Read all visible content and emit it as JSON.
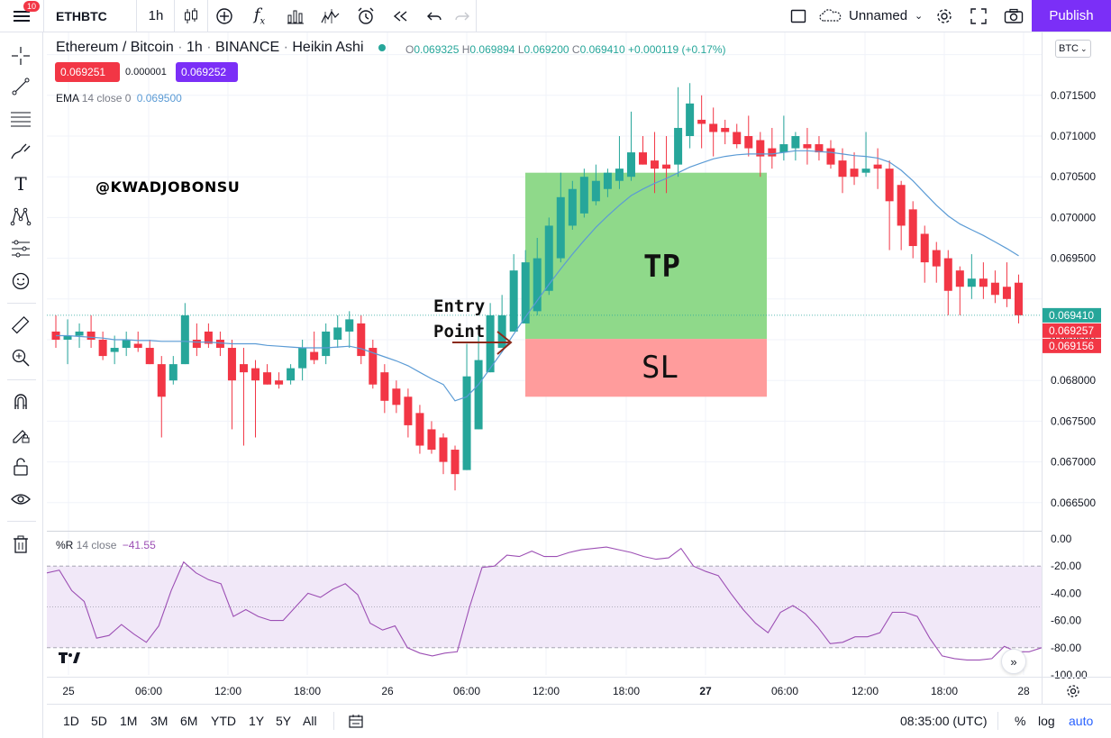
{
  "toolbar": {
    "notif_count": "10",
    "symbol": "ETHBTC",
    "interval": "1h",
    "layout_name": "Unnamed",
    "publish_label": "Publish"
  },
  "legend": {
    "title_pair": "Ethereum / Bitcoin",
    "title_interval": "1h",
    "title_exchange": "BINANCE",
    "title_style": "Heikin Ashi",
    "ohlc": {
      "o_label": "O",
      "o_value": "0.069325",
      "h_label": "H",
      "h_value": "0.069894",
      "l_label": "L",
      "l_value": "0.069200",
      "c_label": "C",
      "c_value": "0.069410",
      "change": "+0.000119 (+0.17%)"
    },
    "bid": "0.069251",
    "spread": "0.000001",
    "ask": "0.069252",
    "ema_label": "EMA",
    "ema_params": "14 close 0",
    "ema_value": "0.069500",
    "wr_label": "%R",
    "wr_params": "14 close",
    "wr_value": "−41.55"
  },
  "watermark": "@KWADJOBONSU",
  "annotations": {
    "entry_line1": "Entry",
    "entry_line2": "Point",
    "tp": "TP",
    "sl": "SL"
  },
  "price_scale": {
    "currency": "BTC",
    "labels": [
      "0.071500",
      "0.071000",
      "0.070500",
      "0.070000",
      "0.069500",
      "0.068500",
      "0.068000",
      "0.067500",
      "0.067000",
      "0.066500"
    ],
    "tags": [
      {
        "value": 0.06941,
        "text": "0.069410",
        "color": "#26a69a"
      },
      {
        "value": 0.069257,
        "text": "0.069257",
        "color": "#f23645"
      },
      {
        "value": 0.069156,
        "text": "0.069156",
        "color": "#f23645"
      }
    ]
  },
  "wr_scale": {
    "labels": [
      "0.00",
      "-20.00",
      "-40.00",
      "-60.00",
      "-80.00",
      "-100.00"
    ]
  },
  "time_axis": {
    "labels": [
      "25",
      "06:00",
      "12:00",
      "18:00",
      "26",
      "06:00",
      "12:00",
      "18:00",
      "27",
      "06:00",
      "12:00",
      "18:00",
      "28"
    ]
  },
  "bottom": {
    "ranges": [
      "1D",
      "5D",
      "1M",
      "3M",
      "6M",
      "YTD",
      "1Y",
      "5Y",
      "All"
    ],
    "clock": "08:35:00 (UTC)",
    "pct": "%",
    "log": "log",
    "auto": "auto"
  },
  "colors": {
    "up": "#26a69a",
    "down": "#f23645",
    "tp_zone": "#8fd98a",
    "sl_zone": "#ff9c9c",
    "ema": "#5b9bd5",
    "wr": "#9c4fb4",
    "wr_band": "#f1e8f8",
    "publish": "#7b2ff7"
  },
  "chart_data": [
    {
      "type": "candlestick",
      "style": "Heikin Ashi",
      "symbol": "ETHBTC",
      "interval": "1h",
      "xlabel": "",
      "ylabel": "",
      "ylim": [
        0.0663,
        0.0721
      ],
      "candles": [
        {
          "o": 0.0686,
          "h": 0.0688,
          "l": 0.0684,
          "c": 0.0685
        },
        {
          "o": 0.0685,
          "h": 0.06875,
          "l": 0.0682,
          "c": 0.06855
        },
        {
          "o": 0.06855,
          "h": 0.0687,
          "l": 0.0684,
          "c": 0.0686
        },
        {
          "o": 0.0686,
          "h": 0.0688,
          "l": 0.0684,
          "c": 0.0685
        },
        {
          "o": 0.0685,
          "h": 0.0686,
          "l": 0.06825,
          "c": 0.0683
        },
        {
          "o": 0.06835,
          "h": 0.06855,
          "l": 0.0682,
          "c": 0.0684
        },
        {
          "o": 0.0684,
          "h": 0.0686,
          "l": 0.0683,
          "c": 0.0685
        },
        {
          "o": 0.06845,
          "h": 0.0686,
          "l": 0.06835,
          "c": 0.0684
        },
        {
          "o": 0.0684,
          "h": 0.0685,
          "l": 0.0682,
          "c": 0.0682
        },
        {
          "o": 0.0682,
          "h": 0.0683,
          "l": 0.0673,
          "c": 0.0678
        },
        {
          "o": 0.068,
          "h": 0.0683,
          "l": 0.06795,
          "c": 0.0682
        },
        {
          "o": 0.0682,
          "h": 0.06895,
          "l": 0.0682,
          "c": 0.0688
        },
        {
          "o": 0.0685,
          "h": 0.0687,
          "l": 0.0683,
          "c": 0.0684
        },
        {
          "o": 0.0686,
          "h": 0.0687,
          "l": 0.0684,
          "c": 0.06845
        },
        {
          "o": 0.0685,
          "h": 0.0686,
          "l": 0.0683,
          "c": 0.0684
        },
        {
          "o": 0.0684,
          "h": 0.0685,
          "l": 0.0674,
          "c": 0.068
        },
        {
          "o": 0.0682,
          "h": 0.0684,
          "l": 0.0672,
          "c": 0.0681
        },
        {
          "o": 0.06815,
          "h": 0.06825,
          "l": 0.0673,
          "c": 0.068
        },
        {
          "o": 0.0681,
          "h": 0.0682,
          "l": 0.06795,
          "c": 0.06795
        },
        {
          "o": 0.068,
          "h": 0.0681,
          "l": 0.0679,
          "c": 0.06795
        },
        {
          "o": 0.068,
          "h": 0.0682,
          "l": 0.06795,
          "c": 0.06815
        },
        {
          "o": 0.06815,
          "h": 0.0685,
          "l": 0.068,
          "c": 0.0684
        },
        {
          "o": 0.06835,
          "h": 0.0686,
          "l": 0.0682,
          "c": 0.06825
        },
        {
          "o": 0.0683,
          "h": 0.0687,
          "l": 0.0682,
          "c": 0.0686
        },
        {
          "o": 0.0685,
          "h": 0.0688,
          "l": 0.0684,
          "c": 0.06865
        },
        {
          "o": 0.0686,
          "h": 0.06885,
          "l": 0.0684,
          "c": 0.06875
        },
        {
          "o": 0.0687,
          "h": 0.0688,
          "l": 0.0682,
          "c": 0.0683
        },
        {
          "o": 0.0684,
          "h": 0.0685,
          "l": 0.0679,
          "c": 0.06795
        },
        {
          "o": 0.0681,
          "h": 0.0682,
          "l": 0.0676,
          "c": 0.06775
        },
        {
          "o": 0.0679,
          "h": 0.068,
          "l": 0.0676,
          "c": 0.0677
        },
        {
          "o": 0.0678,
          "h": 0.0679,
          "l": 0.0673,
          "c": 0.06745
        },
        {
          "o": 0.0676,
          "h": 0.0677,
          "l": 0.0671,
          "c": 0.0672
        },
        {
          "o": 0.0674,
          "h": 0.0675,
          "l": 0.0671,
          "c": 0.06715
        },
        {
          "o": 0.0673,
          "h": 0.06735,
          "l": 0.06685,
          "c": 0.067
        },
        {
          "o": 0.06715,
          "h": 0.0672,
          "l": 0.06665,
          "c": 0.06685
        },
        {
          "o": 0.0669,
          "h": 0.06845,
          "l": 0.0669,
          "c": 0.06805
        },
        {
          "o": 0.0674,
          "h": 0.06855,
          "l": 0.0674,
          "c": 0.06825
        },
        {
          "o": 0.0681,
          "h": 0.06895,
          "l": 0.0681,
          "c": 0.0688
        },
        {
          "o": 0.0684,
          "h": 0.06905,
          "l": 0.0684,
          "c": 0.0688
        },
        {
          "o": 0.0686,
          "h": 0.06955,
          "l": 0.0686,
          "c": 0.06935
        },
        {
          "o": 0.0687,
          "h": 0.0696,
          "l": 0.0687,
          "c": 0.06945
        },
        {
          "o": 0.06885,
          "h": 0.06975,
          "l": 0.0688,
          "c": 0.0695
        },
        {
          "o": 0.0691,
          "h": 0.07,
          "l": 0.06905,
          "c": 0.0699
        },
        {
          "o": 0.0695,
          "h": 0.07055,
          "l": 0.06945,
          "c": 0.07025
        },
        {
          "o": 0.0699,
          "h": 0.07045,
          "l": 0.06985,
          "c": 0.07035
        },
        {
          "o": 0.07005,
          "h": 0.0706,
          "l": 0.07,
          "c": 0.0705
        },
        {
          "o": 0.0702,
          "h": 0.07065,
          "l": 0.07015,
          "c": 0.07045
        },
        {
          "o": 0.07035,
          "h": 0.0706,
          "l": 0.07025,
          "c": 0.07055
        },
        {
          "o": 0.07045,
          "h": 0.071,
          "l": 0.07035,
          "c": 0.0706
        },
        {
          "o": 0.0705,
          "h": 0.0713,
          "l": 0.07045,
          "c": 0.0708
        },
        {
          "o": 0.0708,
          "h": 0.071,
          "l": 0.07065,
          "c": 0.07065
        },
        {
          "o": 0.0707,
          "h": 0.07105,
          "l": 0.0703,
          "c": 0.0706
        },
        {
          "o": 0.07065,
          "h": 0.071,
          "l": 0.0703,
          "c": 0.0706
        },
        {
          "o": 0.07065,
          "h": 0.0716,
          "l": 0.0705,
          "c": 0.0711
        },
        {
          "o": 0.071,
          "h": 0.07165,
          "l": 0.07085,
          "c": 0.0714
        },
        {
          "o": 0.0712,
          "h": 0.0715,
          "l": 0.07085,
          "c": 0.07115
        },
        {
          "o": 0.07115,
          "h": 0.07135,
          "l": 0.07075,
          "c": 0.07105
        },
        {
          "o": 0.0711,
          "h": 0.0712,
          "l": 0.0709,
          "c": 0.07105
        },
        {
          "o": 0.07105,
          "h": 0.07115,
          "l": 0.07085,
          "c": 0.0709
        },
        {
          "o": 0.071,
          "h": 0.07125,
          "l": 0.07075,
          "c": 0.07085
        },
        {
          "o": 0.07095,
          "h": 0.07105,
          "l": 0.0705,
          "c": 0.07075
        },
        {
          "o": 0.07085,
          "h": 0.0711,
          "l": 0.0706,
          "c": 0.07075
        },
        {
          "o": 0.0708,
          "h": 0.07125,
          "l": 0.0707,
          "c": 0.0709
        },
        {
          "o": 0.07085,
          "h": 0.07105,
          "l": 0.0707,
          "c": 0.071
        },
        {
          "o": 0.0709,
          "h": 0.0711,
          "l": 0.07065,
          "c": 0.07085
        },
        {
          "o": 0.0709,
          "h": 0.071,
          "l": 0.0707,
          "c": 0.0708
        },
        {
          "o": 0.07085,
          "h": 0.07095,
          "l": 0.0706,
          "c": 0.07065
        },
        {
          "o": 0.0707,
          "h": 0.07085,
          "l": 0.0703,
          "c": 0.0705
        },
        {
          "o": 0.0706,
          "h": 0.0708,
          "l": 0.0704,
          "c": 0.0705
        },
        {
          "o": 0.07055,
          "h": 0.07105,
          "l": 0.0705,
          "c": 0.0706
        },
        {
          "o": 0.07065,
          "h": 0.07085,
          "l": 0.07035,
          "c": 0.0706
        },
        {
          "o": 0.0706,
          "h": 0.0707,
          "l": 0.0696,
          "c": 0.0702
        },
        {
          "o": 0.0704,
          "h": 0.07045,
          "l": 0.0696,
          "c": 0.0699
        },
        {
          "o": 0.0701,
          "h": 0.0702,
          "l": 0.0695,
          "c": 0.06965
        },
        {
          "o": 0.0698,
          "h": 0.0699,
          "l": 0.0692,
          "c": 0.06945
        },
        {
          "o": 0.0696,
          "h": 0.0697,
          "l": 0.0692,
          "c": 0.0694
        },
        {
          "o": 0.0695,
          "h": 0.0696,
          "l": 0.0688,
          "c": 0.0691
        },
        {
          "o": 0.06935,
          "h": 0.0694,
          "l": 0.0688,
          "c": 0.06915
        },
        {
          "o": 0.06915,
          "h": 0.06955,
          "l": 0.069,
          "c": 0.06925
        },
        {
          "o": 0.06925,
          "h": 0.06945,
          "l": 0.069,
          "c": 0.06915
        },
        {
          "o": 0.0692,
          "h": 0.06935,
          "l": 0.06895,
          "c": 0.06905
        },
        {
          "o": 0.06915,
          "h": 0.06945,
          "l": 0.0689,
          "c": 0.069
        },
        {
          "o": 0.0692,
          "h": 0.0693,
          "l": 0.0687,
          "c": 0.0688
        }
      ],
      "ema": [
        0.06855,
        0.06855,
        0.06854,
        0.06853,
        0.06852,
        0.0685,
        0.0685,
        0.06849,
        0.06849,
        0.06848,
        0.06848,
        0.06848,
        0.06847,
        0.06847,
        0.06846,
        0.06845,
        0.06845,
        0.06845,
        0.06843,
        0.06842,
        0.06841,
        0.0684,
        0.0684,
        0.0684,
        0.06841,
        0.06842,
        0.06839,
        0.06834,
        0.06829,
        0.06824,
        0.06818,
        0.0681,
        0.06802,
        0.06795,
        0.06775,
        0.0678,
        0.06795,
        0.06815,
        0.06835,
        0.06857,
        0.06878,
        0.06898,
        0.06918,
        0.06937,
        0.06955,
        0.06972,
        0.06988,
        0.07002,
        0.07015,
        0.07027,
        0.07035,
        0.07042,
        0.07048,
        0.07055,
        0.07062,
        0.07067,
        0.07072,
        0.07075,
        0.07077,
        0.07078,
        0.07078,
        0.07078,
        0.0708,
        0.07082,
        0.07082,
        0.07081,
        0.0708,
        0.07078,
        0.07076,
        0.07075,
        0.07073,
        0.07068,
        0.07058,
        0.07045,
        0.0703,
        0.07015,
        0.07002,
        0.06992,
        0.06985,
        0.06978,
        0.0697,
        0.06962,
        0.06953
      ],
      "position": {
        "entry": 0.06851,
        "take_profit": 0.07055,
        "stop_loss": 0.0678,
        "start_index": 37,
        "end_index": 60
      }
    },
    {
      "type": "line",
      "title": "%R 14 close",
      "ylim": [
        -100,
        0
      ],
      "bands": [
        -20,
        -50,
        -80
      ],
      "values": [
        -25,
        -23,
        -38,
        -46,
        -73,
        -71,
        -63,
        -70,
        -76,
        -64,
        -38,
        -17,
        -25,
        -30,
        -33,
        -57,
        -52,
        -57,
        -60,
        -60,
        -50,
        -40,
        -43,
        -37,
        -33,
        -41,
        -62,
        -67,
        -64,
        -80,
        -84,
        -86,
        -84,
        -83,
        -50,
        -21,
        -20,
        -12,
        -13,
        -9,
        -13,
        -13,
        -10,
        -8,
        -7,
        -6,
        -8,
        -10,
        -13,
        -15,
        -14,
        -7,
        -20,
        -24,
        -27,
        -40,
        -52,
        -62,
        -69,
        -54,
        -49,
        -55,
        -65,
        -77,
        -76,
        -72,
        -72,
        -69,
        -54,
        -54,
        -57,
        -73,
        -86,
        -88,
        -89,
        -89,
        -88,
        -79,
        -83,
        -83,
        -80
      ]
    }
  ]
}
